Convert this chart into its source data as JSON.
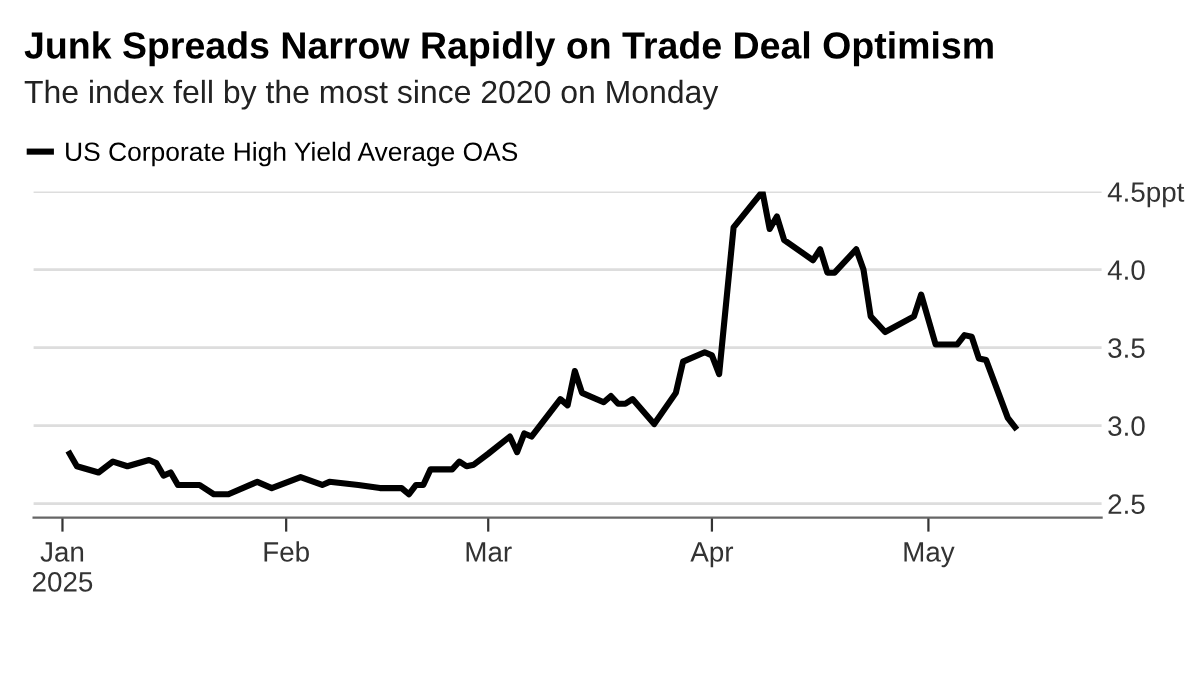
{
  "chart_data": {
    "type": "line",
    "title": "Junk Spreads Narrow Rapidly on Trade Deal Optimism",
    "subtitle": "The index fell by the most since 2020 on Monday",
    "x": [
      "2025-01-02",
      "2025-01-03",
      "2025-01-06",
      "2025-01-08",
      "2025-01-10",
      "2025-01-13",
      "2025-01-14",
      "2025-01-15",
      "2025-01-16",
      "2025-01-17",
      "2025-01-20",
      "2025-01-22",
      "2025-01-24",
      "2025-01-28",
      "2025-01-30",
      "2025-02-03",
      "2025-02-06",
      "2025-02-07",
      "2025-02-11",
      "2025-02-14",
      "2025-02-17",
      "2025-02-18",
      "2025-02-19",
      "2025-02-20",
      "2025-02-21",
      "2025-02-24",
      "2025-02-25",
      "2025-02-26",
      "2025-02-27",
      "2025-03-01",
      "2025-03-04",
      "2025-03-05",
      "2025-03-06",
      "2025-03-07",
      "2025-03-11",
      "2025-03-12",
      "2025-03-13",
      "2025-03-14",
      "2025-03-17",
      "2025-03-18",
      "2025-03-19",
      "2025-03-20",
      "2025-03-21",
      "2025-03-24",
      "2025-03-27",
      "2025-03-28",
      "2025-03-31",
      "2025-04-01",
      "2025-04-02",
      "2025-04-04",
      "2025-04-08",
      "2025-04-09",
      "2025-04-10",
      "2025-04-11",
      "2025-04-15",
      "2025-04-16",
      "2025-04-17",
      "2025-04-18",
      "2025-04-21",
      "2025-04-22",
      "2025-04-23",
      "2025-04-25",
      "2025-04-29",
      "2025-04-30",
      "2025-05-02",
      "2025-05-05",
      "2025-05-06",
      "2025-05-07",
      "2025-05-08",
      "2025-05-09",
      "2025-05-12",
      "2025-05-13"
    ],
    "series": [
      {
        "name": "US Corporate High Yield Average OAS",
        "color": "#000000",
        "values": [
          2.82,
          2.74,
          2.7,
          2.77,
          2.74,
          2.78,
          2.76,
          2.68,
          2.7,
          2.62,
          2.62,
          2.56,
          2.56,
          2.64,
          2.6,
          2.67,
          2.62,
          2.64,
          2.62,
          2.6,
          2.6,
          2.56,
          2.62,
          2.62,
          2.72,
          2.72,
          2.77,
          2.74,
          2.75,
          2.82,
          2.93,
          2.83,
          2.95,
          2.93,
          3.17,
          3.13,
          3.35,
          3.21,
          3.15,
          3.19,
          3.14,
          3.14,
          3.17,
          3.01,
          3.21,
          3.41,
          3.47,
          3.45,
          3.33,
          4.27,
          4.5,
          4.26,
          4.34,
          4.19,
          4.06,
          4.13,
          3.98,
          3.98,
          4.13,
          4.0,
          3.7,
          3.6,
          3.7,
          3.84,
          3.52,
          3.52,
          3.58,
          3.57,
          3.43,
          3.42,
          3.05,
          2.99
        ]
      }
    ],
    "xlim": [
      "2024-12-28",
      "2025-05-25"
    ],
    "xticks": [
      {
        "value": "2025-01-01",
        "label": "Jan\n2025"
      },
      {
        "value": "2025-02-01",
        "label": "Feb"
      },
      {
        "value": "2025-03-01",
        "label": "Mar"
      },
      {
        "value": "2025-04-01",
        "label": "Apr"
      },
      {
        "value": "2025-05-01",
        "label": "May"
      }
    ],
    "ylim": [
      2.41,
      4.5
    ],
    "yticks": [
      {
        "value": 2.5,
        "label": "2.5"
      },
      {
        "value": 3.0,
        "label": "3.0"
      },
      {
        "value": 3.5,
        "label": "3.5"
      },
      {
        "value": 4.0,
        "label": "4.0"
      },
      {
        "value": 4.5,
        "label": "4.5ppt"
      }
    ],
    "grid": "y",
    "legend": "top left",
    "marker": "none",
    "line_style": "solid"
  }
}
